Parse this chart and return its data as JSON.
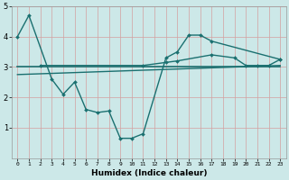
{
  "xlabel": "Humidex (Indice chaleur)",
  "x_ticks": [
    0,
    1,
    2,
    3,
    4,
    5,
    6,
    7,
    8,
    9,
    10,
    11,
    12,
    13,
    14,
    15,
    16,
    17,
    18,
    19,
    20,
    21,
    22,
    23
  ],
  "ylim": [
    0,
    5
  ],
  "xlim": [
    -0.5,
    23.5
  ],
  "yticks": [
    1,
    2,
    3,
    4,
    5
  ],
  "bg_color": "#cce8e8",
  "grid_color": "#d4a0a0",
  "line_color": "#1a7070",
  "line1_x": [
    0,
    1,
    3,
    4,
    5,
    6,
    7,
    8,
    9,
    10,
    11,
    13,
    14,
    15,
    16,
    17,
    23
  ],
  "line1_y": [
    4.0,
    4.7,
    2.6,
    2.1,
    2.5,
    1.6,
    1.5,
    1.55,
    0.65,
    0.65,
    0.8,
    3.3,
    3.5,
    4.05,
    4.05,
    3.85,
    3.25
  ],
  "line2_x": [
    0,
    2,
    23
  ],
  "line2_y": [
    3.0,
    3.0,
    3.0
  ],
  "line3_x": [
    0,
    23
  ],
  "line3_y": [
    2.75,
    3.05
  ],
  "line4_x": [
    2,
    11,
    13,
    14,
    17,
    19,
    20,
    21,
    22,
    23
  ],
  "line4_y": [
    3.05,
    3.05,
    3.15,
    3.2,
    3.4,
    3.3,
    3.05,
    3.05,
    3.05,
    3.25
  ]
}
